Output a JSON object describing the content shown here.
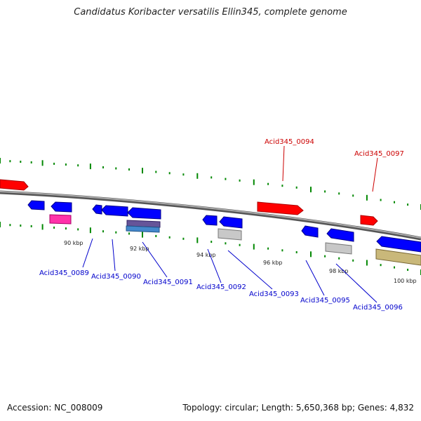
{
  "title": "Candidatus Koribacter versatilis Ellin345, complete genome",
  "footer": {
    "accession": "Accession: NC_008009",
    "stats": "Topology: circular; Length: 5,650,368 bp; Genes: 4,832"
  },
  "colors": {
    "forward_gene": "#ff0000",
    "reverse_gene": "#0000ff",
    "backbone": "#888888",
    "tick": "#008800",
    "label_forward": "#cc0000",
    "label_reverse": "#0000cc"
  },
  "scale_labels": [
    "90 kbp",
    "92 kbp",
    "94 kbp",
    "96 kbp",
    "98 kbp",
    "100 kbp"
  ],
  "gene_labels": {
    "forward": [
      "Acid345_0094",
      "Acid345_0097"
    ],
    "reverse": [
      "Acid345_0089",
      "Acid345_0090",
      "Acid345_0091",
      "Acid345_0092",
      "Acid345_0093",
      "Acid345_0095",
      "Acid345_0096"
    ]
  }
}
